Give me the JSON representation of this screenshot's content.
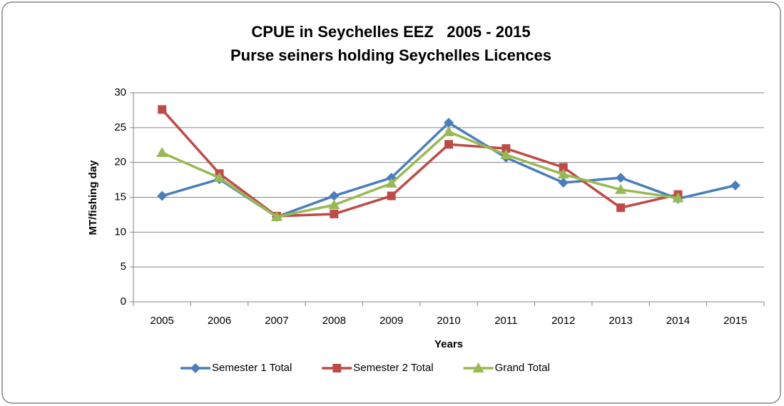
{
  "chart_data": {
    "type": "line",
    "title": "CPUE in Seychelles EEZ   2005 - 2015",
    "subtitle": "Purse seiners holding Seychelles Licences",
    "y_label": "MT/fishing day",
    "x_label": "Years",
    "categories": [
      "2005",
      "2006",
      "2007",
      "2008",
      "2009",
      "2010",
      "2011",
      "2012",
      "2013",
      "2014",
      "2015"
    ],
    "series": [
      {
        "name": "Semester 1 Total",
        "color": "#4a7ebb",
        "marker": "diamond",
        "values": [
          15.2,
          17.6,
          12.2,
          15.2,
          17.8,
          25.7,
          20.7,
          17.1,
          17.8,
          14.8,
          16.7
        ]
      },
      {
        "name": "Semester 2 Total",
        "color": "#be4b48",
        "marker": "square",
        "values": [
          27.6,
          18.4,
          12.3,
          12.6,
          15.2,
          22.6,
          22.0,
          19.3,
          13.5,
          15.4,
          null
        ]
      },
      {
        "name": "Grand Total",
        "color": "#98b954",
        "marker": "triangle",
        "values": [
          21.4,
          17.8,
          12.2,
          13.9,
          17.0,
          24.4,
          21.1,
          18.3,
          16.1,
          14.9,
          null
        ]
      }
    ],
    "ylim": [
      0,
      30
    ],
    "yticks": [
      0,
      5,
      10,
      15,
      20,
      25,
      30
    ],
    "grid": true,
    "legend": "bottom"
  }
}
